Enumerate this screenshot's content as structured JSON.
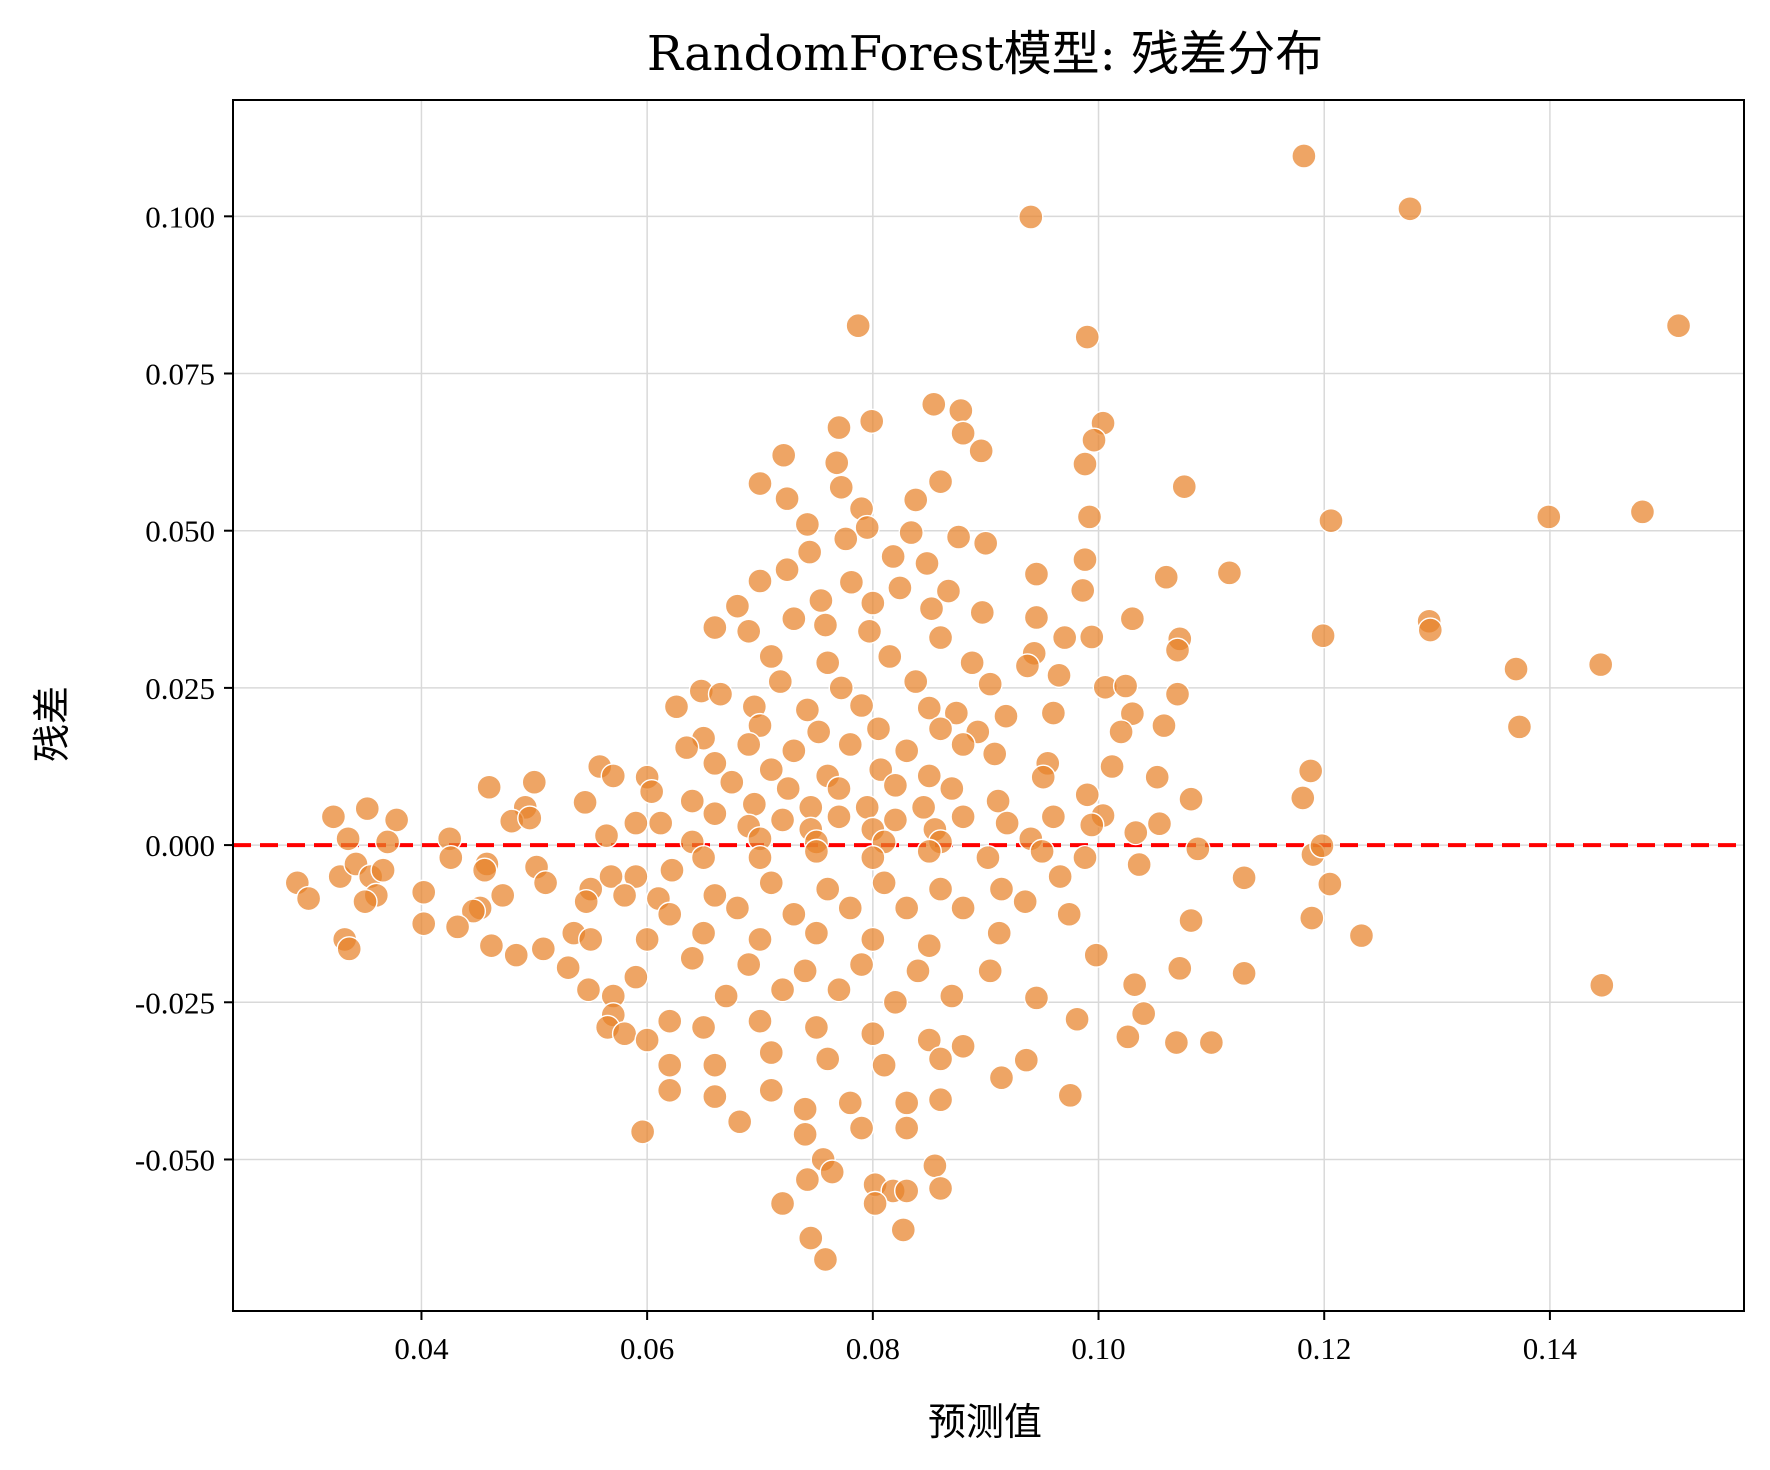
{
  "chart_data": {
    "type": "scatter",
    "title": "RandomForest模型: 残差分布",
    "xlabel": "预测值",
    "ylabel": "残差",
    "xlim": [
      0.0233,
      0.1572
    ],
    "ylim": [
      -0.0741,
      0.1185
    ],
    "xticks": [
      0.04,
      0.06,
      0.08,
      0.1,
      0.12,
      0.14
    ],
    "xtick_labels": [
      "0.04",
      "0.06",
      "0.08",
      "0.10",
      "0.12",
      "0.14"
    ],
    "yticks": [
      -0.05,
      -0.025,
      0.0,
      0.025,
      0.05,
      0.075,
      0.1
    ],
    "ytick_labels": [
      "-0.050",
      "-0.025",
      "0.000",
      "0.025",
      "0.050",
      "0.075",
      "0.100"
    ],
    "grid": true,
    "colors": {
      "point": "#e8822a",
      "reference_line": "#ff0000",
      "grid": "#d9d9d9"
    },
    "reference_line": {
      "y": 0.0,
      "style": "dashed"
    },
    "points": [
      [
        0.1182,
        0.1096
      ],
      [
        0.1276,
        0.1012
      ],
      [
        0.094,
        0.0999
      ],
      [
        0.1514,
        0.0826
      ],
      [
        0.0787,
        0.0826
      ],
      [
        0.099,
        0.0808
      ],
      [
        0.0854,
        0.0701
      ],
      [
        0.0878,
        0.0691
      ],
      [
        0.1004,
        0.0671
      ],
      [
        0.0799,
        0.0674
      ],
      [
        0.077,
        0.0664
      ],
      [
        0.0996,
        0.0644
      ],
      [
        0.088,
        0.0655
      ],
      [
        0.0896,
        0.0627
      ],
      [
        0.0721,
        0.062
      ],
      [
        0.0768,
        0.0608
      ],
      [
        0.0988,
        0.0606
      ],
      [
        0.07,
        0.0575
      ],
      [
        0.086,
        0.0578
      ],
      [
        0.1076,
        0.057
      ],
      [
        0.0772,
        0.0569
      ],
      [
        0.0838,
        0.0549
      ],
      [
        0.0724,
        0.0551
      ],
      [
        0.1482,
        0.053
      ],
      [
        0.1399,
        0.0522
      ],
      [
        0.0992,
        0.0522
      ],
      [
        0.1206,
        0.0516
      ],
      [
        0.0742,
        0.051
      ],
      [
        0.079,
        0.0535
      ],
      [
        0.0795,
        0.0505
      ],
      [
        0.0834,
        0.0497
      ],
      [
        0.0876,
        0.049
      ],
      [
        0.09,
        0.048
      ],
      [
        0.0776,
        0.0487
      ],
      [
        0.0744,
        0.0466
      ],
      [
        0.0818,
        0.0459
      ],
      [
        0.0848,
        0.0448
      ],
      [
        0.0988,
        0.0454
      ],
      [
        0.0724,
        0.0438
      ],
      [
        0.0945,
        0.0431
      ],
      [
        0.1116,
        0.0433
      ],
      [
        0.106,
        0.0426
      ],
      [
        0.07,
        0.042
      ],
      [
        0.0781,
        0.0418
      ],
      [
        0.0824,
        0.0409
      ],
      [
        0.0867,
        0.0404
      ],
      [
        0.0986,
        0.0405
      ],
      [
        0.0754,
        0.0389
      ],
      [
        0.08,
        0.0385
      ],
      [
        0.0852,
        0.0376
      ],
      [
        0.0897,
        0.037
      ],
      [
        0.068,
        0.038
      ],
      [
        0.073,
        0.036
      ],
      [
        0.0945,
        0.0362
      ],
      [
        0.103,
        0.036
      ],
      [
        0.066,
        0.0346
      ],
      [
        0.069,
        0.034
      ],
      [
        0.0758,
        0.035
      ],
      [
        0.0797,
        0.034
      ],
      [
        0.086,
        0.033
      ],
      [
        0.097,
        0.033
      ],
      [
        0.0994,
        0.0331
      ],
      [
        0.1199,
        0.0333
      ],
      [
        0.1072,
        0.0328
      ],
      [
        0.1293,
        0.0356
      ],
      [
        0.1294,
        0.0342
      ],
      [
        0.071,
        0.03
      ],
      [
        0.076,
        0.029
      ],
      [
        0.0815,
        0.03
      ],
      [
        0.0888,
        0.029
      ],
      [
        0.0943,
        0.0305
      ],
      [
        0.0937,
        0.0285
      ],
      [
        0.107,
        0.031
      ],
      [
        0.137,
        0.028
      ],
      [
        0.1445,
        0.0287
      ],
      [
        0.0965,
        0.027
      ],
      [
        0.0718,
        0.026
      ],
      [
        0.0772,
        0.025
      ],
      [
        0.0838,
        0.026
      ],
      [
        0.0904,
        0.0256
      ],
      [
        0.1006,
        0.0251
      ],
      [
        0.1024,
        0.0253
      ],
      [
        0.107,
        0.024
      ],
      [
        0.0648,
        0.0245
      ],
      [
        0.0665,
        0.024
      ],
      [
        0.0626,
        0.022
      ],
      [
        0.0695,
        0.022
      ],
      [
        0.0742,
        0.0215
      ],
      [
        0.079,
        0.0222
      ],
      [
        0.085,
        0.0218
      ],
      [
        0.0874,
        0.021
      ],
      [
        0.0918,
        0.0205
      ],
      [
        0.096,
        0.021
      ],
      [
        0.103,
        0.0209
      ],
      [
        0.1058,
        0.019
      ],
      [
        0.07,
        0.019
      ],
      [
        0.0752,
        0.018
      ],
      [
        0.0805,
        0.0185
      ],
      [
        0.086,
        0.0185
      ],
      [
        0.0893,
        0.018
      ],
      [
        0.102,
        0.018
      ],
      [
        0.1373,
        0.0188
      ],
      [
        0.065,
        0.017
      ],
      [
        0.0635,
        0.0155
      ],
      [
        0.069,
        0.016
      ],
      [
        0.073,
        0.015
      ],
      [
        0.078,
        0.016
      ],
      [
        0.083,
        0.015
      ],
      [
        0.088,
        0.016
      ],
      [
        0.0908,
        0.0145
      ],
      [
        0.0955,
        0.013
      ],
      [
        0.066,
        0.013
      ],
      [
        0.071,
        0.012
      ],
      [
        0.076,
        0.011
      ],
      [
        0.0807,
        0.012
      ],
      [
        0.085,
        0.011
      ],
      [
        0.1012,
        0.0125
      ],
      [
        0.1188,
        0.0118
      ],
      [
        0.0558,
        0.0125
      ],
      [
        0.057,
        0.011
      ],
      [
        0.06,
        0.0108
      ],
      [
        0.05,
        0.01
      ],
      [
        0.046,
        0.0092
      ],
      [
        0.0675,
        0.01
      ],
      [
        0.0725,
        0.009
      ],
      [
        0.077,
        0.009
      ],
      [
        0.082,
        0.0095
      ],
      [
        0.087,
        0.009
      ],
      [
        0.0951,
        0.0108
      ],
      [
        0.1052,
        0.0108
      ],
      [
        0.0604,
        0.0085
      ],
      [
        0.099,
        0.008
      ],
      [
        0.0545,
        0.0068
      ],
      [
        0.064,
        0.007
      ],
      [
        0.0695,
        0.0065
      ],
      [
        0.0745,
        0.006
      ],
      [
        0.0795,
        0.006
      ],
      [
        0.0845,
        0.006
      ],
      [
        0.0911,
        0.007
      ],
      [
        0.1082,
        0.0073
      ],
      [
        0.1181,
        0.0075
      ],
      [
        0.0352,
        0.0058
      ],
      [
        0.0492,
        0.006
      ],
      [
        0.066,
        0.005
      ],
      [
        0.072,
        0.004
      ],
      [
        0.077,
        0.0045
      ],
      [
        0.082,
        0.004
      ],
      [
        0.088,
        0.0045
      ],
      [
        0.096,
        0.0045
      ],
      [
        0.1004,
        0.0047
      ],
      [
        0.0322,
        0.0045
      ],
      [
        0.0378,
        0.004
      ],
      [
        0.048,
        0.0038
      ],
      [
        0.0496,
        0.0043
      ],
      [
        0.059,
        0.0035
      ],
      [
        0.0612,
        0.0035
      ],
      [
        0.069,
        0.003
      ],
      [
        0.0745,
        0.0025
      ],
      [
        0.08,
        0.0025
      ],
      [
        0.0855,
        0.0025
      ],
      [
        0.0919,
        0.0035
      ],
      [
        0.0994,
        0.0032
      ],
      [
        0.1054,
        0.0034
      ],
      [
        0.0335,
        0.001
      ],
      [
        0.037,
        0.0005
      ],
      [
        0.0425,
        0.001
      ],
      [
        0.0564,
        0.0015
      ],
      [
        0.064,
        0.0005
      ],
      [
        0.07,
        0.001
      ],
      [
        0.075,
        0.0005
      ],
      [
        0.081,
        0.0005
      ],
      [
        0.086,
        0.0005
      ],
      [
        0.094,
        0.001
      ],
      [
        0.1033,
        0.002
      ],
      [
        0.0328,
        -0.005
      ],
      [
        0.0342,
        -0.003
      ],
      [
        0.0355,
        -0.005
      ],
      [
        0.0366,
        -0.004
      ],
      [
        0.036,
        -0.008
      ],
      [
        0.035,
        -0.009
      ],
      [
        0.029,
        -0.006
      ],
      [
        0.03,
        -0.0085
      ],
      [
        0.0426,
        -0.002
      ],
      [
        0.0458,
        -0.003
      ],
      [
        0.0456,
        -0.004
      ],
      [
        0.0402,
        -0.0075
      ],
      [
        0.0502,
        -0.0035
      ],
      [
        0.051,
        -0.006
      ],
      [
        0.055,
        -0.007
      ],
      [
        0.0568,
        -0.005
      ],
      [
        0.059,
        -0.005
      ],
      [
        0.0622,
        -0.004
      ],
      [
        0.065,
        -0.002
      ],
      [
        0.07,
        -0.002
      ],
      [
        0.075,
        -0.001
      ],
      [
        0.08,
        -0.002
      ],
      [
        0.085,
        -0.001
      ],
      [
        0.0902,
        -0.002
      ],
      [
        0.095,
        -0.001
      ],
      [
        0.0988,
        -0.002
      ],
      [
        0.1036,
        -0.0031
      ],
      [
        0.1088,
        -0.0006
      ],
      [
        0.119,
        -0.0015
      ],
      [
        0.1198,
        -0.0001
      ],
      [
        0.1129,
        -0.0052
      ],
      [
        0.1205,
        -0.0062
      ],
      [
        0.0472,
        -0.008
      ],
      [
        0.0452,
        -0.01
      ],
      [
        0.0446,
        -0.0105
      ],
      [
        0.0546,
        -0.009
      ],
      [
        0.058,
        -0.008
      ],
      [
        0.061,
        -0.0085
      ],
      [
        0.066,
        -0.008
      ],
      [
        0.071,
        -0.006
      ],
      [
        0.076,
        -0.007
      ],
      [
        0.081,
        -0.006
      ],
      [
        0.086,
        -0.007
      ],
      [
        0.0914,
        -0.007
      ],
      [
        0.0966,
        -0.005
      ],
      [
        0.0402,
        -0.0125
      ],
      [
        0.0432,
        -0.013
      ],
      [
        0.0535,
        -0.014
      ],
      [
        0.055,
        -0.015
      ],
      [
        0.062,
        -0.011
      ],
      [
        0.068,
        -0.01
      ],
      [
        0.073,
        -0.011
      ],
      [
        0.078,
        -0.01
      ],
      [
        0.083,
        -0.01
      ],
      [
        0.088,
        -0.01
      ],
      [
        0.0935,
        -0.009
      ],
      [
        0.0974,
        -0.011
      ],
      [
        0.1082,
        -0.012
      ],
      [
        0.1189,
        -0.0116
      ],
      [
        0.1233,
        -0.0144
      ],
      [
        0.0332,
        -0.015
      ],
      [
        0.0336,
        -0.0165
      ],
      [
        0.0462,
        -0.016
      ],
      [
        0.0484,
        -0.0175
      ],
      [
        0.0508,
        -0.0165
      ],
      [
        0.053,
        -0.0195
      ],
      [
        0.06,
        -0.015
      ],
      [
        0.065,
        -0.014
      ],
      [
        0.07,
        -0.015
      ],
      [
        0.075,
        -0.014
      ],
      [
        0.08,
        -0.015
      ],
      [
        0.085,
        -0.016
      ],
      [
        0.0912,
        -0.014
      ],
      [
        0.0998,
        -0.0175
      ],
      [
        0.0548,
        -0.023
      ],
      [
        0.057,
        -0.024
      ],
      [
        0.059,
        -0.021
      ],
      [
        0.064,
        -0.018
      ],
      [
        0.069,
        -0.019
      ],
      [
        0.074,
        -0.02
      ],
      [
        0.079,
        -0.019
      ],
      [
        0.084,
        -0.02
      ],
      [
        0.0904,
        -0.02
      ],
      [
        0.1072,
        -0.0196
      ],
      [
        0.1129,
        -0.0204
      ],
      [
        0.057,
        -0.027
      ],
      [
        0.0565,
        -0.029
      ],
      [
        0.062,
        -0.028
      ],
      [
        0.067,
        -0.024
      ],
      [
        0.072,
        -0.023
      ],
      [
        0.077,
        -0.023
      ],
      [
        0.082,
        -0.025
      ],
      [
        0.087,
        -0.024
      ],
      [
        0.0945,
        -0.0243
      ],
      [
        0.1032,
        -0.0222
      ],
      [
        0.1446,
        -0.0223
      ],
      [
        0.058,
        -0.03
      ],
      [
        0.06,
        -0.031
      ],
      [
        0.065,
        -0.029
      ],
      [
        0.07,
        -0.028
      ],
      [
        0.075,
        -0.029
      ],
      [
        0.08,
        -0.03
      ],
      [
        0.085,
        -0.031
      ],
      [
        0.088,
        -0.032
      ],
      [
        0.0981,
        -0.0277
      ],
      [
        0.104,
        -0.0268
      ],
      [
        0.1026,
        -0.0305
      ],
      [
        0.1069,
        -0.0314
      ],
      [
        0.11,
        -0.0314
      ],
      [
        0.062,
        -0.035
      ],
      [
        0.066,
        -0.035
      ],
      [
        0.071,
        -0.033
      ],
      [
        0.076,
        -0.034
      ],
      [
        0.081,
        -0.035
      ],
      [
        0.086,
        -0.034
      ],
      [
        0.0936,
        -0.0342
      ],
      [
        0.0914,
        -0.037
      ],
      [
        0.062,
        -0.039
      ],
      [
        0.066,
        -0.04
      ],
      [
        0.071,
        -0.039
      ],
      [
        0.074,
        -0.042
      ],
      [
        0.078,
        -0.041
      ],
      [
        0.083,
        -0.041
      ],
      [
        0.086,
        -0.0405
      ],
      [
        0.0975,
        -0.0398
      ],
      [
        0.0682,
        -0.044
      ],
      [
        0.074,
        -0.046
      ],
      [
        0.079,
        -0.045
      ],
      [
        0.083,
        -0.045
      ],
      [
        0.0596,
        -0.0456
      ],
      [
        0.0756,
        -0.05
      ],
      [
        0.0855,
        -0.051
      ],
      [
        0.0764,
        -0.052
      ],
      [
        0.0742,
        -0.0532
      ],
      [
        0.0802,
        -0.054
      ],
      [
        0.0818,
        -0.055
      ],
      [
        0.083,
        -0.055
      ],
      [
        0.086,
        -0.0546
      ],
      [
        0.072,
        -0.057
      ],
      [
        0.0802,
        -0.057
      ],
      [
        0.0827,
        -0.0612
      ],
      [
        0.0745,
        -0.0625
      ],
      [
        0.0758,
        -0.0659
      ]
    ]
  }
}
